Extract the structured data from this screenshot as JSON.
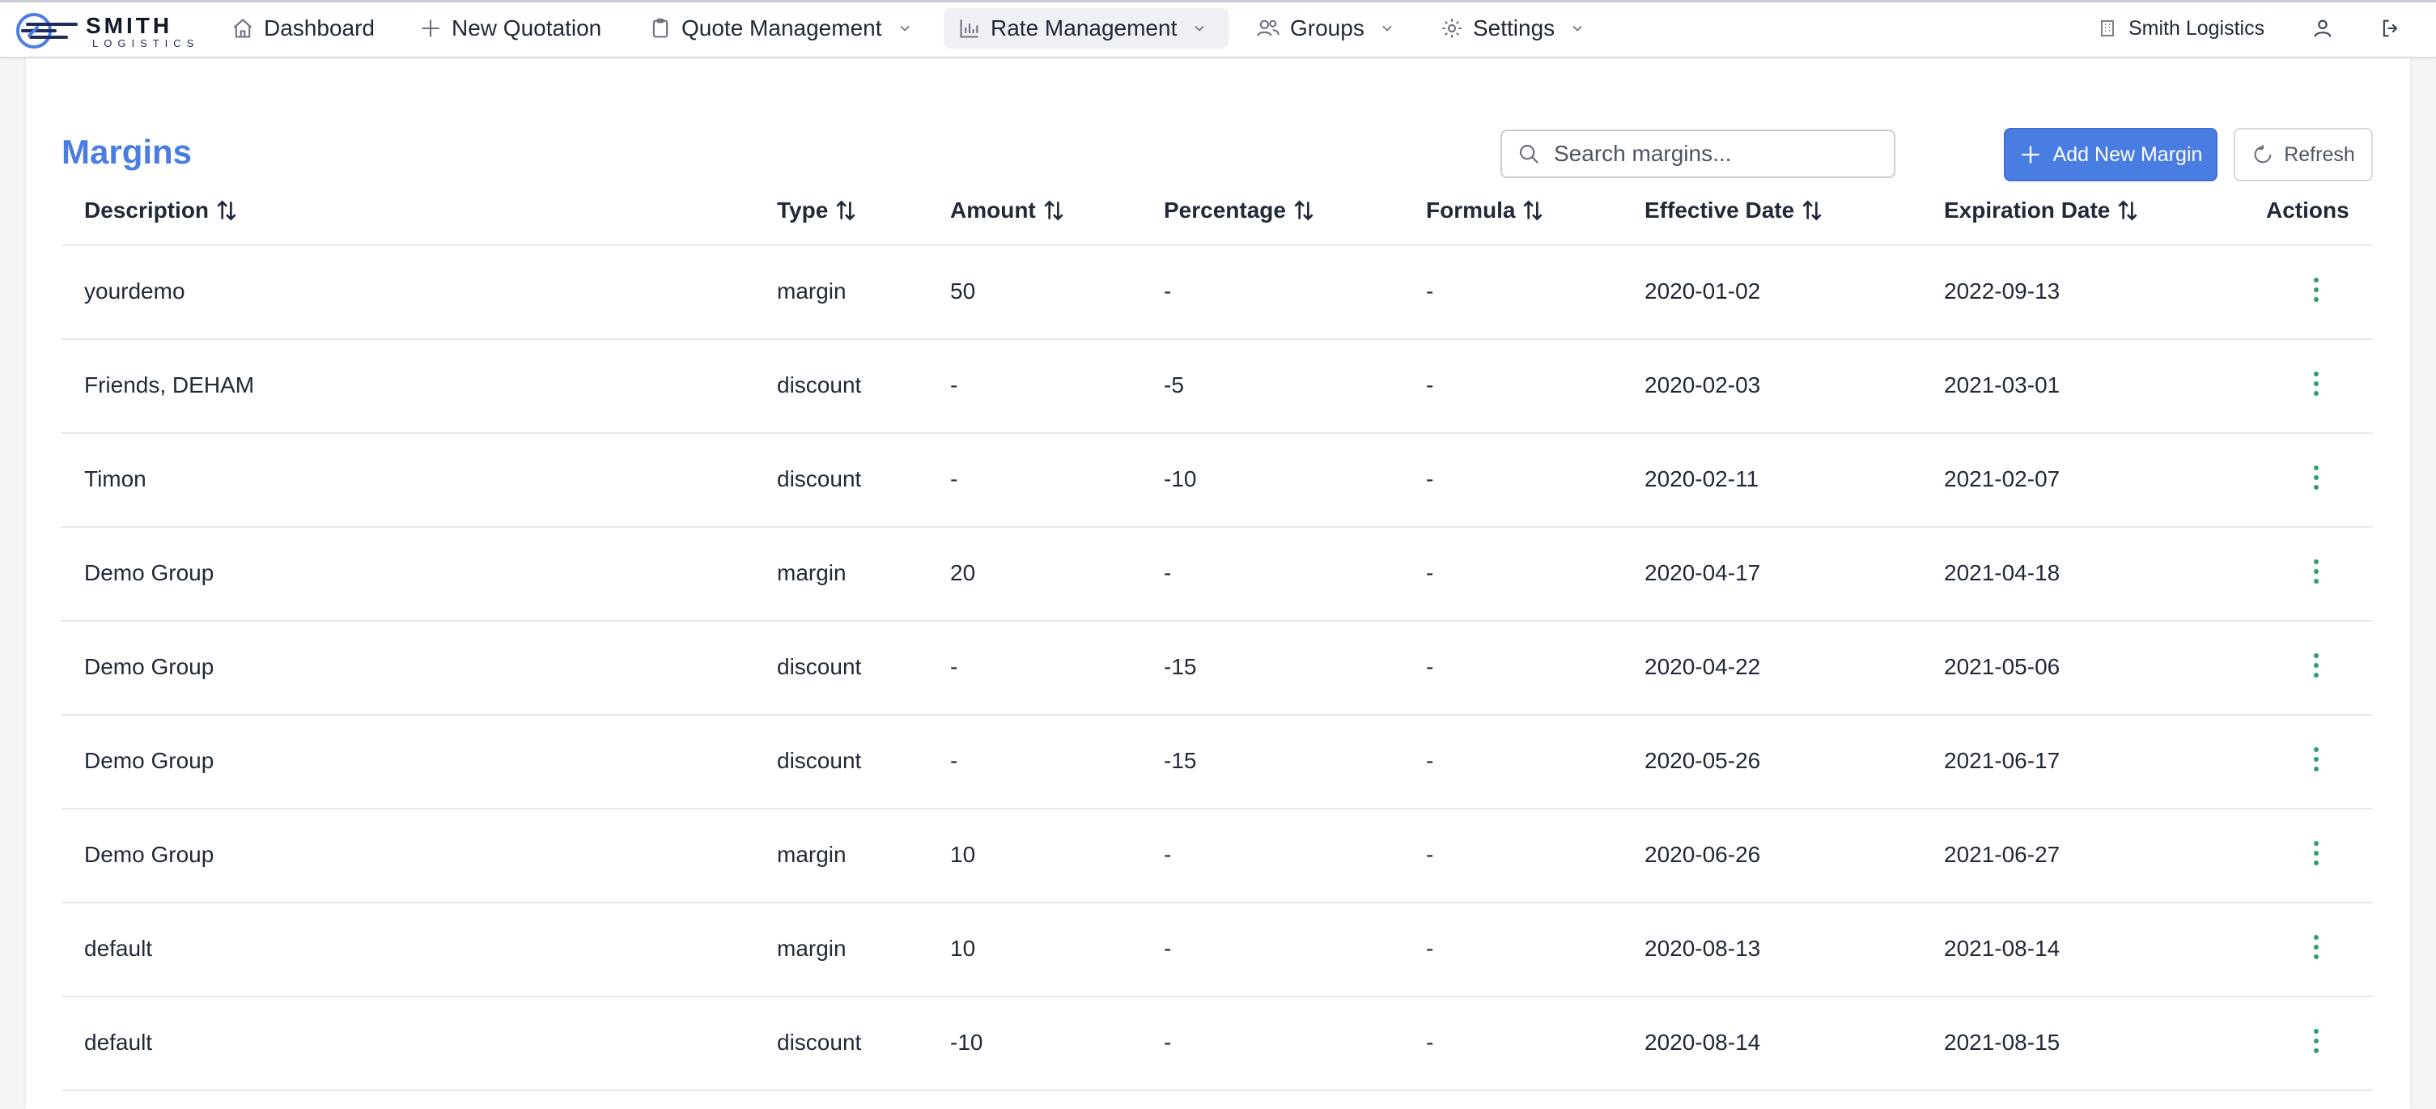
{
  "brand": {
    "name_line1": "SMITH",
    "name_line2": "LOGISTICS"
  },
  "nav": {
    "items": [
      {
        "label": "Dashboard",
        "icon": "home-icon"
      },
      {
        "label": "New Quotation",
        "icon": "plus-icon"
      },
      {
        "label": "Quote Management",
        "icon": "clipboard-icon",
        "dropdown": true
      },
      {
        "label": "Rate Management",
        "icon": "bar-chart-icon",
        "dropdown": true,
        "active": true
      },
      {
        "label": "Groups",
        "icon": "users-icon",
        "dropdown": true
      },
      {
        "label": "Settings",
        "icon": "gear-icon",
        "dropdown": true
      }
    ],
    "company": "Smith Logistics",
    "company_icon": "building-icon",
    "user_icon": "user-icon",
    "logout_icon": "logout-icon"
  },
  "page": {
    "title": "Margins",
    "search_placeholder": "Search margins...",
    "add_button": "Add New Margin",
    "refresh_button": "Refresh"
  },
  "table": {
    "columns": [
      "Description",
      "Type",
      "Amount",
      "Percentage",
      "Formula",
      "Effective Date",
      "Expiration Date",
      "Actions"
    ],
    "rows": [
      [
        "yourdemo",
        "margin",
        "50",
        "-",
        "-",
        "2020-01-02",
        "2022-09-13"
      ],
      [
        "Friends, DEHAM",
        "discount",
        "-",
        "-5",
        "-",
        "2020-02-03",
        "2021-03-01"
      ],
      [
        "Timon",
        "discount",
        "-",
        "-10",
        "-",
        "2020-02-11",
        "2021-02-07"
      ],
      [
        "Demo Group",
        "margin",
        "20",
        "-",
        "-",
        "2020-04-17",
        "2021-04-18"
      ],
      [
        "Demo Group",
        "discount",
        "-",
        "-15",
        "-",
        "2020-04-22",
        "2021-05-06"
      ],
      [
        "Demo Group",
        "discount",
        "-",
        "-15",
        "-",
        "2020-05-26",
        "2021-06-17"
      ],
      [
        "Demo Group",
        "margin",
        "10",
        "-",
        "-",
        "2020-06-26",
        "2021-06-27"
      ],
      [
        "default",
        "margin",
        "10",
        "-",
        "-",
        "2020-08-13",
        "2021-08-14"
      ],
      [
        "default",
        "discount",
        "-10",
        "-",
        "-",
        "2020-08-14",
        "2021-08-15"
      ]
    ]
  },
  "colors": {
    "accent": "#4a7de2",
    "kebab": "#2f9e6e",
    "border": "#e5e7eb"
  }
}
